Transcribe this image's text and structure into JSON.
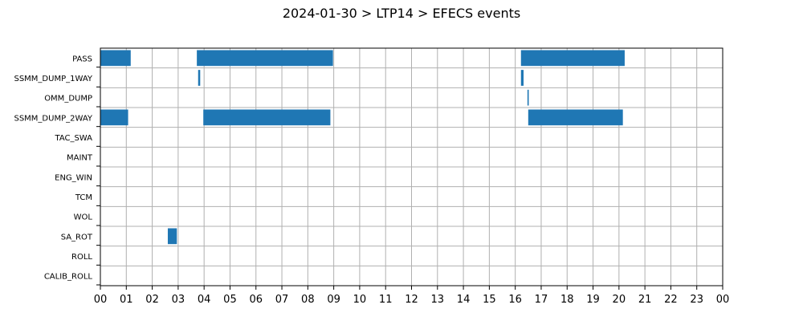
{
  "chart_data": {
    "type": "bar",
    "orientation": "horizontal-timeline",
    "title": "2024-01-30 > LTP14 > EFECS events",
    "xlabel": "",
    "ylabel": "",
    "x_unit": "hour of day",
    "xlim": [
      0,
      24
    ],
    "x_tick_labels": [
      "00",
      "01",
      "02",
      "03",
      "04",
      "05",
      "06",
      "07",
      "08",
      "09",
      "10",
      "11",
      "12",
      "13",
      "14",
      "15",
      "16",
      "17",
      "18",
      "19",
      "20",
      "21",
      "22",
      "23",
      "00"
    ],
    "categories": [
      "PASS",
      "SSMM_DUMP_1WAY",
      "OMM_DUMP",
      "SSMM_DUMP_2WAY",
      "TAC_SWA",
      "MAINT",
      "ENG_WIN",
      "TCM",
      "WOL",
      "SA_ROT",
      "ROLL",
      "CALIB_ROLL"
    ],
    "grid": true,
    "bar_color": "#1f77b4",
    "events": [
      {
        "category": "PASS",
        "start": 0.0,
        "end": 1.17
      },
      {
        "category": "PASS",
        "start": 3.72,
        "end": 8.97
      },
      {
        "category": "PASS",
        "start": 16.22,
        "end": 20.22
      },
      {
        "category": "SSMM_DUMP_1WAY",
        "start": 3.77,
        "end": 3.85
      },
      {
        "category": "SSMM_DUMP_1WAY",
        "start": 16.22,
        "end": 16.32
      },
      {
        "category": "OMM_DUMP",
        "start": 16.47,
        "end": 16.52
      },
      {
        "category": "SSMM_DUMP_2WAY",
        "start": 0.0,
        "end": 1.07
      },
      {
        "category": "SSMM_DUMP_2WAY",
        "start": 3.97,
        "end": 8.87
      },
      {
        "category": "SSMM_DUMP_2WAY",
        "start": 16.5,
        "end": 20.15
      },
      {
        "category": "SA_ROT",
        "start": 2.6,
        "end": 2.95
      }
    ]
  }
}
